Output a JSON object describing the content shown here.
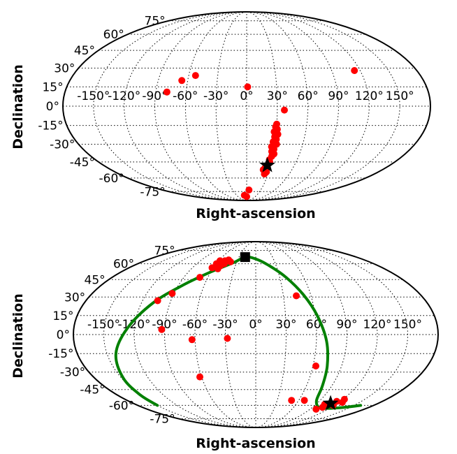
{
  "chart_data": [
    {
      "type": "scatter",
      "projection": "mollweide",
      "xlabel": "Right-ascension",
      "ylabel": "Declination",
      "ra_tick_labels": [
        "-150°",
        "-120°",
        "-90°",
        "-60°",
        "-30°",
        "0°",
        "30°",
        "60°",
        "90°",
        "120°",
        "150°"
      ],
      "dec_tick_labels": [
        "75°",
        "60°",
        "45°",
        "30°",
        "15°",
        "0°",
        "-15°",
        "-30°",
        "-45°",
        "-60°",
        "-75°"
      ],
      "grid": true,
      "colors": {
        "points": "#ff0000",
        "marker": "#000000",
        "track": "#008000"
      },
      "series": [
        {
          "marker": "circle",
          "points": [
            [
              -66,
              20
            ],
            [
              -53,
              24
            ],
            [
              -79,
              11
            ],
            [
              1,
              15
            ],
            [
              114,
              28
            ],
            [
              37,
              -3
            ],
            [
              30,
              -14
            ],
            [
              29,
              -16
            ],
            [
              31,
              -18
            ],
            [
              28,
              -20
            ],
            [
              32,
              -22
            ],
            [
              29,
              -24
            ],
            [
              31,
              -26
            ],
            [
              28,
              -28
            ],
            [
              32,
              -30
            ],
            [
              27,
              -32
            ],
            [
              30,
              -34
            ],
            [
              28,
              -36
            ],
            [
              31,
              -38
            ],
            [
              29,
              -40
            ],
            [
              27,
              -43
            ],
            [
              28,
              -45
            ],
            [
              24,
              -50
            ],
            [
              22,
              -52
            ],
            [
              27,
              -54
            ],
            [
              25,
              -56
            ],
            [
              -7,
              -80
            ],
            [
              5,
              -73
            ],
            [
              0,
              -82
            ]
          ]
        },
        {
          "marker": "star",
          "points": [
            [
              26,
              -48
            ]
          ]
        }
      ]
    },
    {
      "type": "scatter",
      "projection": "mollweide",
      "xlabel": "Right-ascension",
      "ylabel": "Declination",
      "ra_tick_labels": [
        "-150°",
        "-120°",
        "-90°",
        "-60°",
        "-30°",
        "0°",
        "30°",
        "60°",
        "90°",
        "120°",
        "150°"
      ],
      "dec_tick_labels": [
        "75°",
        "60°",
        "45°",
        "30°",
        "15°",
        "0°",
        "-15°",
        "-30°",
        "-45°",
        "-60°",
        "-75°"
      ],
      "grid": true,
      "colors": {
        "points": "#ff0000",
        "marker": "#000000",
        "track": "#008000"
      },
      "series": [
        {
          "marker": "circle",
          "points": [
            [
              -60,
              60
            ],
            [
              -55,
              61
            ],
            [
              -50,
              63
            ],
            [
              -52,
              58
            ],
            [
              -48,
              60
            ],
            [
              -57,
              57
            ],
            [
              -45,
              64
            ],
            [
              -58,
              63
            ],
            [
              -53,
              55
            ],
            [
              -62,
              56
            ],
            [
              -40,
              62
            ],
            [
              -70,
              47
            ],
            [
              -104,
              27
            ],
            [
              -92,
              33
            ],
            [
              -93,
              4
            ],
            [
              -63,
              -4
            ],
            [
              -62,
              -34
            ],
            [
              -28,
              -3
            ],
            [
              44,
              31
            ],
            [
              63,
              -25
            ],
            [
              50,
              -55
            ],
            [
              68,
              -55
            ],
            [
              103,
              -59
            ],
            [
              106,
              -62
            ],
            [
              110,
              -58
            ],
            [
              115,
              -56
            ],
            [
              122,
              -54
            ],
            [
              100,
              -64
            ],
            [
              118,
              -60
            ],
            [
              125,
              -57
            ]
          ]
        },
        {
          "marker": "square",
          "points": [
            [
              -19,
              67
            ]
          ]
        },
        {
          "marker": "star",
          "points": [
            [
              110,
              -58
            ]
          ]
        },
        {
          "marker": "line",
          "points": [
            [
              -150,
              -60
            ],
            [
              -150,
              -50
            ],
            [
              -148,
              -35
            ],
            [
              -141,
              -15
            ],
            [
              -127,
              5
            ],
            [
              -108,
              25
            ],
            [
              -85,
              40
            ],
            [
              -60,
              52
            ],
            [
              -35,
              61
            ],
            [
              -19,
              67
            ],
            [
              0,
              65
            ],
            [
              20,
              58
            ],
            [
              38,
              47
            ],
            [
              52,
              32
            ],
            [
              62,
              15
            ],
            [
              70,
              -5
            ],
            [
              75,
              -25
            ],
            [
              79,
              -42
            ],
            [
              85,
              -55
            ],
            [
              100,
              -62
            ],
            [
              115,
              -63
            ],
            [
              140,
              -62
            ],
            [
              160,
              -60
            ]
          ]
        }
      ]
    }
  ]
}
